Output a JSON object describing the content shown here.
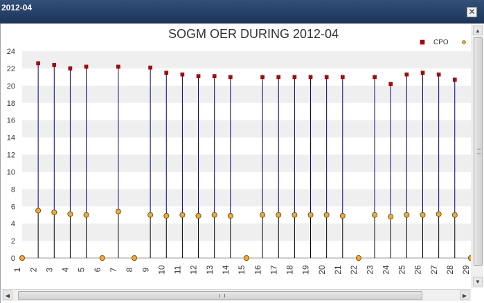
{
  "window": {
    "title": "2012-04",
    "close_label": "✕"
  },
  "scrollbars": {
    "up_arrow": "▲",
    "down_arrow": "▼",
    "left_arrow": "◀",
    "right_arrow": "▶"
  },
  "colors": {
    "cpo_marker": "#c00000",
    "cpo_line": "#000080",
    "other_marker": "#f0a830",
    "other_line": "#000000",
    "band": "#efefef"
  },
  "chart_data": {
    "type": "scatter",
    "title": "SOGM OER DURING 2012-04",
    "xlabel": "",
    "ylabel": "",
    "ylim": [
      0,
      24
    ],
    "yticks": [
      0,
      2,
      4,
      6,
      8,
      10,
      12,
      14,
      16,
      18,
      20,
      22,
      24
    ],
    "categories": [
      "1",
      "2",
      "3",
      "4",
      "5",
      "6",
      "7",
      "8",
      "9",
      "10",
      "11",
      "12",
      "13",
      "14",
      "15",
      "16",
      "17",
      "18",
      "19",
      "20",
      "21",
      "22",
      "23",
      "24",
      "25",
      "26",
      "27",
      "28",
      "29"
    ],
    "grid": "horizontal alternating bands",
    "legend_position": "top-right",
    "series": [
      {
        "name": "CPO",
        "marker": "square",
        "values": [
          null,
          22.6,
          22.4,
          22.0,
          22.2,
          null,
          22.2,
          null,
          22.1,
          21.5,
          21.3,
          21.1,
          21.1,
          21.0,
          null,
          21.0,
          21.0,
          21.0,
          21.0,
          21.0,
          21.0,
          null,
          21.0,
          20.2,
          21.3,
          21.5,
          21.3,
          20.7,
          null
        ]
      },
      {
        "name": "",
        "marker": "circle",
        "values": [
          0,
          5.5,
          5.3,
          5.1,
          5.0,
          0,
          5.4,
          0,
          5.0,
          4.9,
          5.0,
          4.9,
          5.0,
          4.9,
          0,
          5.0,
          5.0,
          5.0,
          5.0,
          5.0,
          4.9,
          0,
          5.0,
          4.8,
          5.0,
          5.0,
          5.1,
          5.0,
          0
        ]
      }
    ]
  }
}
